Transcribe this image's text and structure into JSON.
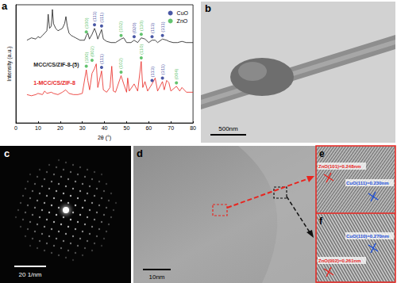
{
  "chart_data": {
    "type": "line",
    "panel_label": "a",
    "xlabel": "2θ (°)",
    "ylabel": "Intensity (a.u.)",
    "xlim": [
      0,
      80
    ],
    "xticks": [
      0,
      10,
      20,
      30,
      40,
      50,
      60,
      70,
      80
    ],
    "ylim": [
      0,
      100
    ],
    "tick_labels": "x",
    "grid": false,
    "legend": "upper right",
    "series": [
      {
        "name": "MCC/CS/ZIF-8-(5)",
        "color": "#1a1a1a",
        "x": [
          5,
          7,
          9,
          10,
          11,
          12,
          13,
          14,
          14.6,
          15.2,
          16,
          16.5,
          17,
          18,
          19,
          20,
          21,
          22,
          22.6,
          23.2,
          24,
          25,
          26,
          27,
          28,
          29,
          30,
          31,
          31.8,
          32.5,
          33.2,
          34.4,
          35.5,
          36.3,
          37,
          38.7,
          39.5,
          41,
          43,
          45,
          47.5,
          48.7,
          50,
          52,
          53.4,
          55,
          56.6,
          58.3,
          60,
          61.5,
          62.9,
          64,
          66.2,
          68.1,
          69.1,
          71,
          73,
          75,
          77,
          80
        ],
        "values": [
          70,
          72,
          71,
          73,
          72,
          74,
          76,
          78,
          92,
          80,
          82,
          96,
          84,
          80,
          78,
          79,
          80,
          84,
          90,
          82,
          76,
          74,
          73,
          72,
          71,
          70,
          70,
          70,
          74,
          76,
          71,
          75,
          80,
          76,
          71,
          79,
          71,
          69,
          68,
          68,
          71,
          72,
          68,
          68,
          70,
          68,
          72,
          71,
          68,
          70,
          70,
          68,
          71,
          70,
          69,
          68,
          68,
          69,
          68,
          68
        ]
      },
      {
        "name": "1-MCC/CS/ZIF-8",
        "color": "#e8251f",
        "x": [
          5,
          7,
          9,
          10,
          12,
          13,
          14,
          16,
          17,
          19,
          21,
          22.5,
          24,
          26,
          28,
          30,
          31.8,
          32.5,
          33.3,
          34.4,
          35.5,
          36.3,
          37,
          38.7,
          39.5,
          41,
          42.5,
          43.3,
          44,
          45,
          47.5,
          48.7,
          50,
          50.5,
          51.2,
          53.4,
          55,
          56.6,
          57.3,
          58.3,
          59.5,
          61.5,
          62.9,
          64,
          66.2,
          67,
          68.1,
          69.1,
          70,
          72.5,
          74,
          75,
          77,
          80
        ],
        "values": [
          24,
          23,
          24,
          25,
          24,
          27,
          25,
          26,
          25,
          24,
          26,
          28,
          25,
          24,
          24,
          25,
          45,
          36,
          28,
          42,
          46,
          50,
          30,
          44,
          28,
          26,
          30,
          48,
          27,
          26,
          40,
          33,
          26,
          38,
          27,
          33,
          27,
          52,
          30,
          35,
          27,
          33,
          38,
          27,
          35,
          28,
          36,
          34,
          27,
          31,
          27,
          30,
          26,
          26
        ]
      }
    ],
    "markers": [
      {
        "name": "CuO",
        "color": "#1c2d8f",
        "marker": "circle",
        "points": [
          {
            "x": 35.5,
            "y": 83,
            "label": "(111)"
          },
          {
            "x": 38.7,
            "y": 82,
            "label": "(111)"
          },
          {
            "x": 53.4,
            "y": 73,
            "label": "(020)"
          },
          {
            "x": 61.5,
            "y": 73,
            "label": "(113)"
          },
          {
            "x": 66.2,
            "y": 74,
            "label": "(311)"
          },
          {
            "x": 38.7,
            "y": 47,
            "label": "(111)"
          },
          {
            "x": 61.5,
            "y": 36,
            "label": "(113)"
          },
          {
            "x": 66.2,
            "y": 38,
            "label": "(311)"
          }
        ]
      },
      {
        "name": "ZnO",
        "color": "#3cb44b",
        "marker": "circle",
        "points": [
          {
            "x": 31.8,
            "y": 77,
            "label": "(100)"
          },
          {
            "x": 47.5,
            "y": 74,
            "label": "(102)"
          },
          {
            "x": 56.6,
            "y": 75,
            "label": "(110)"
          },
          {
            "x": 31.8,
            "y": 48,
            "label": "(100)"
          },
          {
            "x": 34.4,
            "y": 53,
            "label": "(002)"
          },
          {
            "x": 47.5,
            "y": 43,
            "label": "(102)"
          },
          {
            "x": 56.6,
            "y": 55,
            "label": "(110)"
          },
          {
            "x": 72.5,
            "y": 34,
            "label": "(004)"
          }
        ]
      }
    ]
  },
  "images": {
    "b": {
      "panel_label": "b",
      "scale_bar": "500nm"
    },
    "c": {
      "panel_label": "c",
      "scale_bar": "20 1/nm"
    },
    "d": {
      "panel_label": "d",
      "scale_bar": "10nm"
    },
    "e": {
      "panel_label": "e",
      "annotations": [
        {
          "text": "ZnO(101)=0.248nm",
          "color": "#e8251f"
        },
        {
          "text": "CuO(111)=0.230nm",
          "color": "#1c4fd8"
        }
      ]
    },
    "f": {
      "panel_label": "f",
      "annotations": [
        {
          "text": "CuO(110)=0.270nm",
          "color": "#1c4fd8"
        },
        {
          "text": "ZnO(002)=0.261nm",
          "color": "#e8251f"
        }
      ]
    }
  }
}
